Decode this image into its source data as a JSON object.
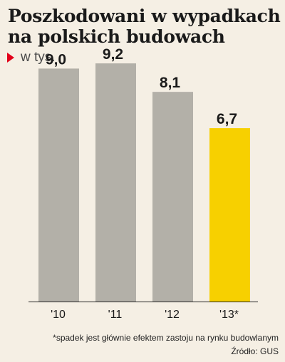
{
  "title": "Poszkodowani w wypadkach na polskich budowach",
  "subtitle": "w tys.",
  "footnote": "*spadek jest głównie efektem zastoju na rynku budowlanym",
  "source": "Źródło: GUS",
  "colors": {
    "background": "#f5efe4",
    "bar": "#b3b0a8",
    "highlight": "#f7d000",
    "marker": "#e2001a",
    "text": "#1a1a1a"
  },
  "chart_data": {
    "type": "bar",
    "categories": [
      "'10",
      "'11",
      "'12",
      "'13*"
    ],
    "values": [
      9.0,
      9.2,
      8.1,
      6.7
    ],
    "value_labels": [
      "9,0",
      "9,2",
      "8,1",
      "6,7"
    ],
    "highlight_index": 3,
    "ylim": [
      0,
      10
    ],
    "grid": false,
    "legend": "none",
    "unit": "w tys."
  }
}
